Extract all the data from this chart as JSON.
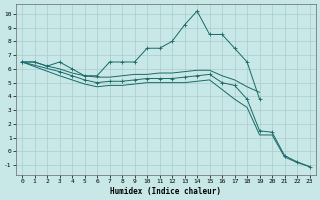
{
  "xlabel": "Humidex (Indice chaleur)",
  "bg_color": "#c8e8e8",
  "grid_color": "#aacccc",
  "line_color": "#1a6868",
  "xlim": [
    -0.5,
    23.5
  ],
  "ylim": [
    -1.7,
    10.7
  ],
  "xticks": [
    0,
    1,
    2,
    3,
    4,
    5,
    6,
    7,
    8,
    9,
    10,
    11,
    12,
    13,
    14,
    15,
    16,
    17,
    18,
    19,
    20,
    21,
    22,
    23
  ],
  "yticks": [
    -1,
    0,
    1,
    2,
    3,
    4,
    5,
    6,
    7,
    8,
    9,
    10
  ],
  "line1_x": [
    0,
    1,
    2,
    3,
    4,
    5,
    6,
    7,
    8,
    9,
    10,
    11,
    12,
    13,
    14,
    15,
    16,
    17,
    18,
    19
  ],
  "line1_y": [
    6.5,
    6.5,
    6.2,
    6.5,
    6.0,
    5.5,
    5.5,
    6.5,
    6.5,
    6.5,
    7.5,
    7.5,
    8.0,
    9.2,
    10.2,
    8.5,
    8.5,
    7.5,
    6.5,
    3.8
  ],
  "line2_x": [
    0,
    1,
    2,
    3,
    4,
    5,
    6,
    7,
    8,
    9,
    10,
    11,
    12,
    13,
    14,
    15,
    16,
    17,
    18,
    19
  ],
  "line2_y": [
    6.5,
    6.5,
    6.2,
    6.0,
    5.7,
    5.5,
    5.4,
    5.4,
    5.5,
    5.6,
    5.6,
    5.7,
    5.7,
    5.8,
    5.9,
    5.9,
    5.5,
    5.2,
    4.7,
    4.3
  ],
  "line3_x": [
    0,
    3,
    4,
    5,
    6,
    7,
    8,
    9,
    10,
    11,
    12,
    13,
    14,
    15,
    16,
    17,
    18,
    19,
    20,
    21,
    22,
    23
  ],
  "line3_y": [
    6.5,
    5.8,
    5.5,
    5.2,
    5.0,
    5.1,
    5.1,
    5.2,
    5.3,
    5.3,
    5.3,
    5.4,
    5.5,
    5.6,
    5.0,
    4.8,
    3.8,
    1.5,
    1.4,
    -0.3,
    -0.75,
    -1.1
  ],
  "line4_x": [
    0,
    3,
    4,
    5,
    6,
    7,
    8,
    9,
    10,
    11,
    12,
    13,
    14,
    15,
    16,
    17,
    18,
    19,
    20,
    21,
    22,
    23
  ],
  "line4_y": [
    6.5,
    5.5,
    5.2,
    4.9,
    4.7,
    4.8,
    4.8,
    4.9,
    5.0,
    5.0,
    5.0,
    5.0,
    5.1,
    5.2,
    4.5,
    3.8,
    3.2,
    1.2,
    1.2,
    -0.4,
    -0.8,
    -1.1
  ]
}
